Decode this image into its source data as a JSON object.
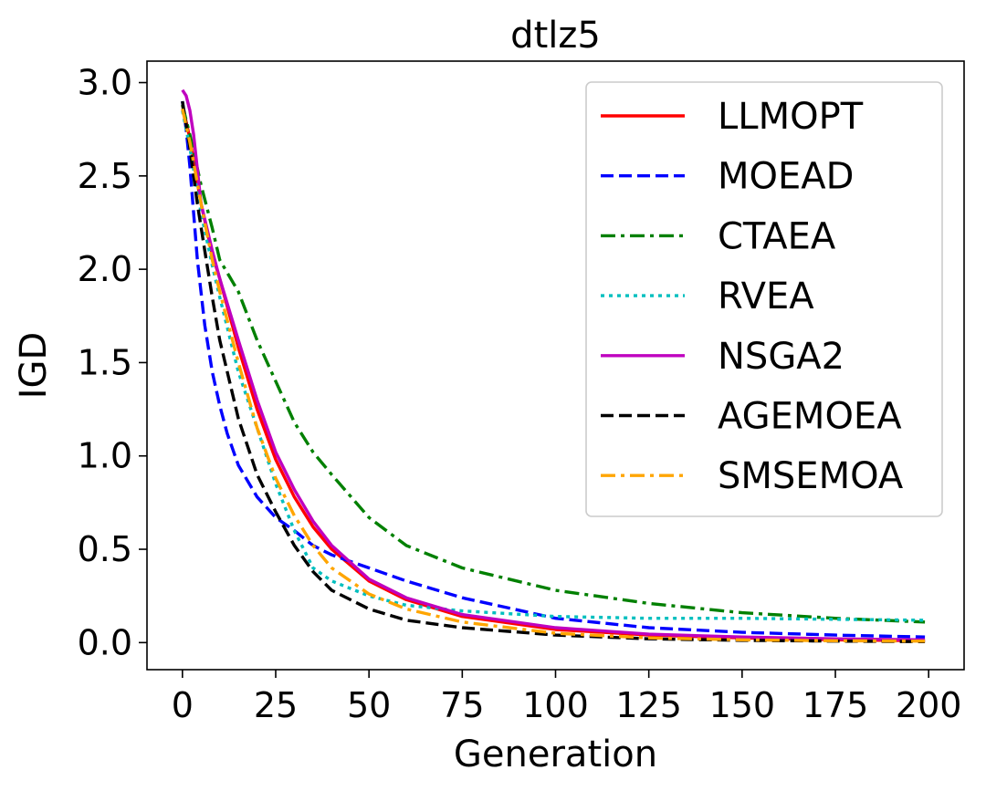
{
  "chart_data": {
    "type": "line",
    "title": "dtlz5",
    "xlabel": "Generation",
    "ylabel": "IGD",
    "xlim": [
      -9.5,
      209.5
    ],
    "ylim": [
      -0.145,
      3.115
    ],
    "xticks": [
      0,
      25,
      50,
      75,
      100,
      125,
      150,
      175,
      200
    ],
    "yticks": [
      0.0,
      0.5,
      1.0,
      1.5,
      2.0,
      2.5,
      3.0
    ],
    "xtick_labels": [
      "0",
      "25",
      "50",
      "75",
      "100",
      "125",
      "150",
      "175",
      "200"
    ],
    "ytick_labels": [
      "0.0",
      "0.5",
      "1.0",
      "1.5",
      "2.0",
      "2.5",
      "3.0"
    ],
    "grid": false,
    "legend": {
      "position": "top-right"
    },
    "series": [
      {
        "name": "LLMOPT",
        "color": "#ff0000",
        "dash": "solid",
        "x": [
          0,
          2,
          5,
          8,
          10,
          15,
          20,
          25,
          30,
          35,
          40,
          50,
          60,
          75,
          100,
          125,
          150,
          175,
          199
        ],
        "y": [
          2.88,
          2.7,
          2.35,
          2.08,
          1.95,
          1.58,
          1.25,
          0.98,
          0.78,
          0.62,
          0.5,
          0.33,
          0.23,
          0.14,
          0.07,
          0.04,
          0.025,
          0.015,
          0.01
        ]
      },
      {
        "name": "MOEAD",
        "color": "#0000ff",
        "dash": "dashed",
        "x": [
          0,
          1,
          2,
          3,
          4,
          6,
          8,
          10,
          12,
          15,
          20,
          25,
          30,
          35,
          40,
          50,
          60,
          75,
          100,
          125,
          150,
          175,
          199
        ],
        "y": [
          2.9,
          2.75,
          2.55,
          2.3,
          2.05,
          1.7,
          1.45,
          1.27,
          1.12,
          0.95,
          0.78,
          0.67,
          0.6,
          0.52,
          0.47,
          0.4,
          0.33,
          0.24,
          0.13,
          0.08,
          0.055,
          0.04,
          0.03
        ]
      },
      {
        "name": "CTAEA",
        "color": "#008000",
        "dash": "dashdot",
        "x": [
          0,
          2,
          5,
          8,
          10,
          15,
          20,
          25,
          30,
          35,
          40,
          50,
          60,
          75,
          100,
          125,
          150,
          175,
          199
        ],
        "y": [
          2.88,
          2.72,
          2.45,
          2.22,
          2.05,
          1.88,
          1.62,
          1.4,
          1.18,
          1.02,
          0.9,
          0.67,
          0.52,
          0.4,
          0.28,
          0.21,
          0.16,
          0.13,
          0.11
        ]
      },
      {
        "name": "RVEA",
        "color": "#00bfbf",
        "dash": "dotted",
        "x": [
          0,
          2,
          5,
          8,
          10,
          15,
          20,
          25,
          30,
          35,
          40,
          50,
          60,
          75,
          100,
          125,
          150,
          175,
          199
        ],
        "y": [
          2.85,
          2.65,
          2.3,
          2.02,
          1.85,
          1.45,
          1.15,
          0.85,
          0.6,
          0.4,
          0.33,
          0.25,
          0.2,
          0.17,
          0.14,
          0.13,
          0.13,
          0.125,
          0.12
        ]
      },
      {
        "name": "NSGA2",
        "color": "#bf00bf",
        "dash": "solid",
        "x": [
          0,
          1,
          2,
          3,
          5,
          8,
          10,
          15,
          20,
          25,
          30,
          35,
          40,
          50,
          60,
          75,
          100,
          125,
          150,
          175,
          199
        ],
        "y": [
          2.96,
          2.93,
          2.85,
          2.72,
          2.35,
          2.1,
          1.95,
          1.62,
          1.3,
          1.02,
          0.82,
          0.65,
          0.52,
          0.34,
          0.24,
          0.15,
          0.08,
          0.045,
          0.03,
          0.02,
          0.015
        ]
      },
      {
        "name": "AGEMOEA",
        "color": "#000000",
        "dash": "dashed",
        "x": [
          0,
          2,
          4,
          6,
          8,
          10,
          15,
          20,
          25,
          30,
          35,
          40,
          50,
          60,
          75,
          100,
          125,
          150,
          175,
          199
        ],
        "y": [
          2.9,
          2.65,
          2.35,
          2.1,
          1.85,
          1.62,
          1.2,
          0.9,
          0.7,
          0.52,
          0.38,
          0.28,
          0.18,
          0.12,
          0.08,
          0.04,
          0.02,
          0.012,
          0.008,
          0.005
        ]
      },
      {
        "name": "SMSEMOA",
        "color": "#ffa500",
        "dash": "dashdot",
        "x": [
          0,
          2,
          5,
          8,
          10,
          15,
          20,
          25,
          30,
          35,
          40,
          50,
          60,
          75,
          100,
          125,
          150,
          175,
          199
        ],
        "y": [
          2.86,
          2.68,
          2.35,
          2.05,
          1.88,
          1.5,
          1.15,
          0.88,
          0.68,
          0.52,
          0.4,
          0.26,
          0.18,
          0.11,
          0.05,
          0.025,
          0.015,
          0.01,
          0.008
        ]
      }
    ]
  }
}
